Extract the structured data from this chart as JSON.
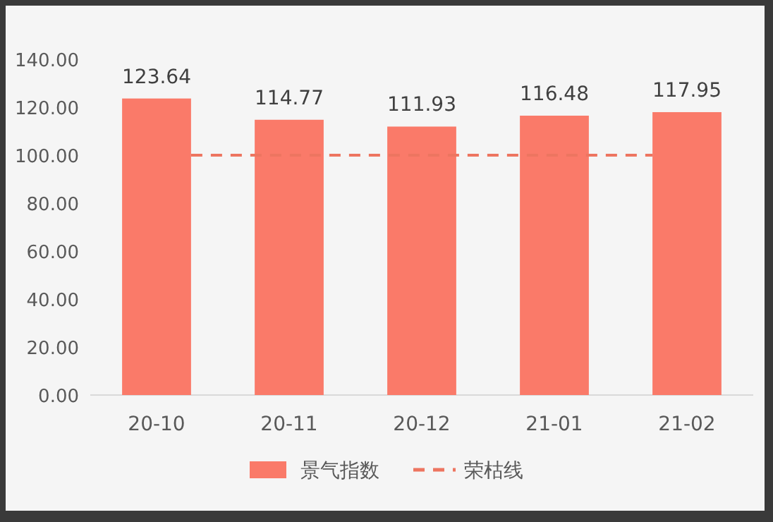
{
  "chart_data": {
    "type": "bar",
    "categories": [
      "20-10",
      "20-11",
      "20-12",
      "21-01",
      "21-02"
    ],
    "series": [
      {
        "name": "景气指数",
        "color": "#fa7a69",
        "values": [
          123.64,
          114.77,
          111.93,
          116.48,
          117.95
        ]
      }
    ],
    "data_labels": true,
    "ylim": [
      0,
      140
    ],
    "yticks": [
      {
        "value": 0,
        "label": "0.00"
      },
      {
        "value": 20,
        "label": "20.00"
      },
      {
        "value": 40,
        "label": "40.00"
      },
      {
        "value": 60,
        "label": "60.00"
      },
      {
        "value": 80,
        "label": "80.00"
      },
      {
        "value": 100,
        "label": "100.00"
      },
      {
        "value": 120,
        "label": "120.00"
      },
      {
        "value": 140,
        "label": "140.00"
      }
    ],
    "ref_lines": [
      {
        "axis": "y",
        "value": 100,
        "label": "荣枯线",
        "color": "#ed7560",
        "line_style": "dashed"
      }
    ],
    "grid": false,
    "legend": "bottom"
  }
}
